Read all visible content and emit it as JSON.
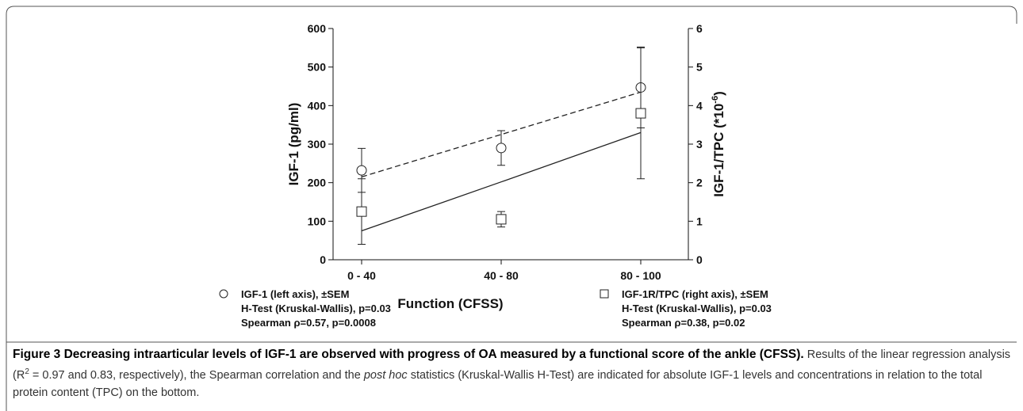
{
  "chart_data": {
    "type": "errorbar",
    "categories": [
      "0 - 40",
      "40 - 80",
      "80 - 100"
    ],
    "xlabel": "Function (CFSS)",
    "ylabel": "IGF-1 (pg/ml)",
    "y2label": [
      "IGF-1/TPC (*10",
      "-6",
      ")"
    ],
    "ylim": [
      0,
      600
    ],
    "yticks": [
      0,
      100,
      200,
      300,
      400,
      500,
      600
    ],
    "y2lim": [
      0,
      6
    ],
    "y2ticks": [
      0,
      1,
      2,
      3,
      4,
      5,
      6
    ],
    "series": [
      {
        "name": "IGF-1 (left axis), ±SEM",
        "stats": [
          "H-Test (Kruskal-Wallis), p=0.03",
          "Spearman ρ=0.57, p=0.0008"
        ],
        "marker": "circle",
        "color": "#222222",
        "dash": true,
        "values": [
          232,
          290,
          447
        ],
        "errors": [
          57,
          45,
          105
        ],
        "fit": [
          215,
          325,
          435
        ]
      },
      {
        "name": "IGF-1R/TPC (right axis), ±SEM",
        "stats": [
          "H-Test (Kruskal-Wallis), p=0.03",
          "Spearman ρ=0.38, p=0.02"
        ],
        "marker": "square",
        "color": "#222222",
        "dash": false,
        "axis": "y2",
        "values": [
          1.25,
          1.05,
          3.8
        ],
        "errors": [
          0.85,
          0.2,
          1.7
        ],
        "fit": [
          0.75,
          2.02,
          3.3
        ]
      }
    ]
  },
  "caption": {
    "title": "Figure 3 Decreasing intraarticular levels of IGF-1 are observed with progress of OA measured by a functional score of the ankle (CFSS).",
    "body": [
      "Results of the linear regression analysis (R",
      "2",
      " = 0.97 and 0.83, respectively), the Spearman correlation and the ",
      "post hoc",
      " statistics (Kruskal-Wallis H-Test) are indicated for absolute IGF-1 levels and concentrations in relation to the total protein content (TPC) on the bottom."
    ]
  }
}
